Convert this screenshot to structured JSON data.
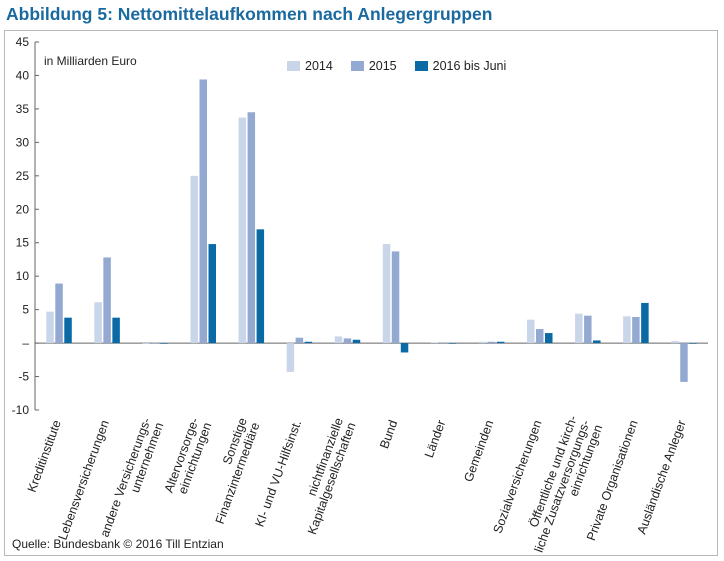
{
  "figure": {
    "title": "Abbildung 5: Nettomittelaufkommen nach Anlegergruppen",
    "unit_label": "in Milliarden Euro",
    "source": "Quelle: Bundesbank © 2016 Till Entzian"
  },
  "colors": {
    "title": "#1a6aa0",
    "series_2014": "#c9d5e9",
    "series_2015": "#94a9d2",
    "series_2016": "#0a6aa6"
  },
  "chart_data": {
    "type": "bar",
    "ylabel": "",
    "xlabel": "",
    "ylim": [
      -10,
      45
    ],
    "yticks": [
      45,
      40,
      35,
      30,
      25,
      20,
      15,
      10,
      5,
      0,
      -5,
      -10
    ],
    "ytick_labels": [
      "45",
      "40",
      "35",
      "30",
      "25",
      "20",
      "15",
      "10",
      "5",
      "–",
      "-5",
      "-10"
    ],
    "grid": false,
    "legend": "top-center",
    "categories": [
      [
        "Kreditinstitute"
      ],
      [
        "Lebensversicherungen"
      ],
      [
        "andere Versicherungs-",
        "unternehmen"
      ],
      [
        "Altervorsorge-",
        "einrichtungen"
      ],
      [
        "Sonstige",
        "Finanzintermediäre"
      ],
      [
        "KI- und VU-Hilfsinst."
      ],
      [
        "nichtfinanzielle",
        "Kapitalgesellschaften"
      ],
      [
        "Bund"
      ],
      [
        "Länder"
      ],
      [
        "Gemeinden"
      ],
      [
        "Sozialversicherungen"
      ],
      [
        "Öffentliche und kirch-",
        "liche Zusatzversorgungs-",
        "einrichtungen"
      ],
      [
        "Private Organisationen"
      ],
      [
        "Ausländische Anleger"
      ]
    ],
    "series": [
      {
        "name": "2014",
        "color": "#c9d5e9",
        "values": [
          4.7,
          6.1,
          0,
          25.0,
          33.7,
          -4.3,
          1.0,
          14.8,
          0.1,
          0.2,
          3.5,
          4.4,
          4.0,
          0.3
        ]
      },
      {
        "name": "2015",
        "color": "#94a9d2",
        "values": [
          8.9,
          12.8,
          0,
          39.4,
          34.5,
          0.8,
          0.7,
          13.7,
          0.1,
          0.2,
          2.1,
          4.1,
          3.9,
          -5.8
        ]
      },
      {
        "name": "2016 bis Juni",
        "color": "#0a6aa6",
        "values": [
          3.8,
          3.8,
          0,
          14.8,
          17.0,
          0.2,
          0.5,
          -1.4,
          0,
          0.2,
          1.5,
          0.4,
          6.0,
          0
        ]
      }
    ]
  }
}
